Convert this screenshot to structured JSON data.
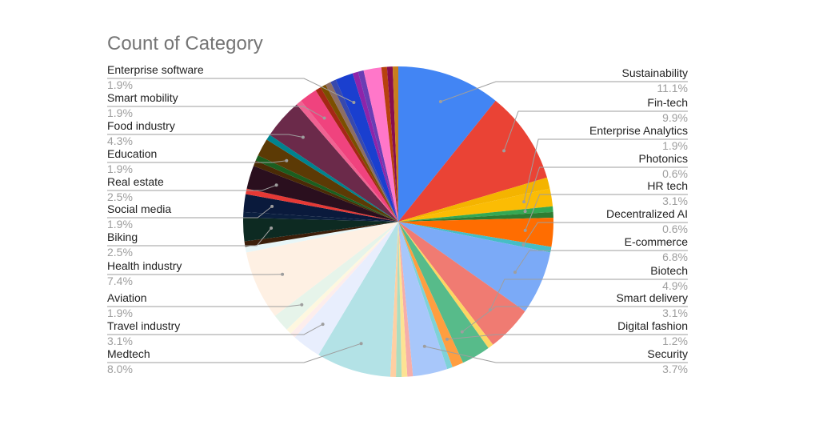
{
  "chart_data": {
    "type": "pie",
    "title": "Count of Category",
    "slices": [
      {
        "label": "Sustainability",
        "value": 11.1,
        "pct_text": "11.1%",
        "color": "#4285F4",
        "labeled": true
      },
      {
        "label": "Fin-tech",
        "value": 9.9,
        "pct_text": "9.9%",
        "color": "#EA4335",
        "labeled": true
      },
      {
        "label": "",
        "value": 1.2,
        "pct_text": "",
        "color": "#F4B400",
        "labeled": false
      },
      {
        "label": "Enterprise Analytics",
        "value": 1.9,
        "pct_text": "1.9%",
        "color": "#FBBC04",
        "labeled": true
      },
      {
        "label": "Photonics",
        "value": 0.6,
        "pct_text": "0.6%",
        "color": "#34A853",
        "labeled": true
      },
      {
        "label": "",
        "value": 0.6,
        "pct_text": "",
        "color": "#2E7D32",
        "labeled": false
      },
      {
        "label": "HR tech",
        "value": 3.1,
        "pct_text": "3.1%",
        "color": "#FF6D01",
        "labeled": true
      },
      {
        "label": "Decentralized AI",
        "value": 0.6,
        "pct_text": "0.6%",
        "color": "#46BDC6",
        "labeled": true
      },
      {
        "label": "E-commerce",
        "value": 6.8,
        "pct_text": "6.8%",
        "color": "#7BAAF7",
        "labeled": true
      },
      {
        "label": "Biotech",
        "value": 4.9,
        "pct_text": "4.9%",
        "color": "#F07B72",
        "labeled": true
      },
      {
        "label": "",
        "value": 0.6,
        "pct_text": "",
        "color": "#FDD663",
        "labeled": false
      },
      {
        "label": "Smart delivery",
        "value": 3.1,
        "pct_text": "3.1%",
        "color": "#57BB8A",
        "labeled": true
      },
      {
        "label": "Digital fashion",
        "value": 1.2,
        "pct_text": "1.2%",
        "color": "#FF9E40",
        "labeled": true
      },
      {
        "label": "",
        "value": 0.6,
        "pct_text": "",
        "color": "#7ED2D8",
        "labeled": false
      },
      {
        "label": "Security",
        "value": 3.7,
        "pct_text": "3.7%",
        "color": "#A8C7FA",
        "labeled": true
      },
      {
        "label": "",
        "value": 0.6,
        "pct_text": "",
        "color": "#F6AEA9",
        "labeled": false
      },
      {
        "label": "",
        "value": 0.6,
        "pct_text": "",
        "color": "#FDE293",
        "labeled": false
      },
      {
        "label": "",
        "value": 0.6,
        "pct_text": "",
        "color": "#ABDDC1",
        "labeled": false
      },
      {
        "label": "",
        "value": 0.6,
        "pct_text": "",
        "color": "#FFCFA2",
        "labeled": false
      },
      {
        "label": "Medtech",
        "value": 8.0,
        "pct_text": "8.0%",
        "color": "#B3E2E6",
        "labeled": true
      },
      {
        "label": "Travel industry",
        "value": 3.1,
        "pct_text": "3.1%",
        "color": "#E8EEFD",
        "labeled": true
      },
      {
        "label": "",
        "value": 0.6,
        "pct_text": "",
        "color": "#FDEDEC",
        "labeled": false
      },
      {
        "label": "",
        "value": 0.6,
        "pct_text": "",
        "color": "#FEF7DF",
        "labeled": false
      },
      {
        "label": "Aviation",
        "value": 1.9,
        "pct_text": "1.9%",
        "color": "#E6F4EA",
        "labeled": true
      },
      {
        "label": "Health industry",
        "value": 7.4,
        "pct_text": "7.4%",
        "color": "#FEF0E3",
        "labeled": true
      },
      {
        "label": "",
        "value": 0.6,
        "pct_text": "",
        "color": "#E8F6F7",
        "labeled": false
      },
      {
        "label": "",
        "value": 0.6,
        "pct_text": "",
        "color": "#3C1F0A",
        "labeled": false
      },
      {
        "label": "Biking",
        "value": 2.5,
        "pct_text": "2.5%",
        "color": "#0D2A22",
        "labeled": true
      },
      {
        "label": "",
        "value": 0.6,
        "pct_text": "",
        "color": "#0B1F3F",
        "labeled": false
      },
      {
        "label": "Social media",
        "value": 1.9,
        "pct_text": "1.9%",
        "color": "#0A1A3C",
        "labeled": true
      },
      {
        "label": "",
        "value": 0.6,
        "pct_text": "",
        "color": "#E53935",
        "labeled": false
      },
      {
        "label": "Real estate",
        "value": 2.5,
        "pct_text": "2.5%",
        "color": "#2A0F1E",
        "labeled": true
      },
      {
        "label": "",
        "value": 0.6,
        "pct_text": "",
        "color": "#4A2A05",
        "labeled": false
      },
      {
        "label": "",
        "value": 0.6,
        "pct_text": "",
        "color": "#1B5E20",
        "labeled": false
      },
      {
        "label": "Education",
        "value": 1.9,
        "pct_text": "1.9%",
        "color": "#5C3A05",
        "labeled": true
      },
      {
        "label": "",
        "value": 0.6,
        "pct_text": "",
        "color": "#00838F",
        "labeled": false
      },
      {
        "label": "Food industry",
        "value": 4.3,
        "pct_text": "4.3%",
        "color": "#6B2A4A",
        "labeled": true
      },
      {
        "label": "",
        "value": 0.6,
        "pct_text": "",
        "color": "#F06292",
        "labeled": false
      },
      {
        "label": "Smart mobility",
        "value": 1.9,
        "pct_text": "1.9%",
        "color": "#F0437E",
        "labeled": true
      },
      {
        "label": "",
        "value": 0.6,
        "pct_text": "",
        "color": "#A52714",
        "labeled": false
      },
      {
        "label": "",
        "value": 0.6,
        "pct_text": "",
        "color": "#7B4F00",
        "labeled": false
      },
      {
        "label": "",
        "value": 0.6,
        "pct_text": "",
        "color": "#8D6E63",
        "labeled": false
      },
      {
        "label": "",
        "value": 0.6,
        "pct_text": "",
        "color": "#3949AB",
        "labeled": false
      },
      {
        "label": "Enterprise software",
        "value": 1.9,
        "pct_text": "1.9%",
        "color": "#1A3FCF",
        "labeled": true
      },
      {
        "label": "",
        "value": 0.6,
        "pct_text": "",
        "color": "#8E24AA",
        "labeled": false
      },
      {
        "label": "",
        "value": 0.6,
        "pct_text": "",
        "color": "#6A3DB4",
        "labeled": false
      },
      {
        "label": "",
        "value": 1.9,
        "pct_text": "",
        "color": "#FF77C9",
        "labeled": false
      },
      {
        "label": "",
        "value": 0.6,
        "pct_text": "",
        "color": "#B7410E",
        "labeled": false
      },
      {
        "label": "",
        "value": 0.6,
        "pct_text": "",
        "color": "#880E4F",
        "labeled": false
      },
      {
        "label": "",
        "value": 0.6,
        "pct_text": "",
        "color": "#C87E1E",
        "labeled": false
      }
    ],
    "legend": "none",
    "label_placement": "outside-with-leaders",
    "start": "12 o'clock",
    "direction": "clockwise"
  }
}
